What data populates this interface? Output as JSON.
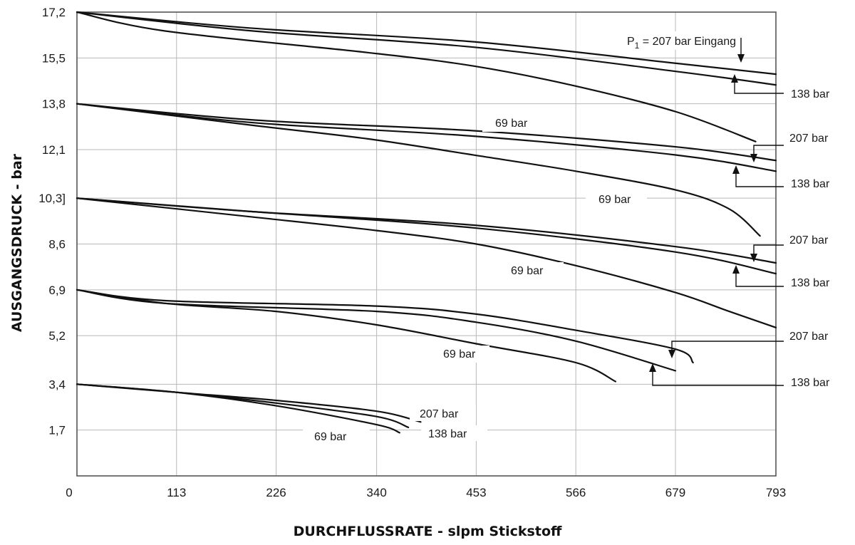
{
  "chart_data": {
    "type": "line",
    "xlabel": "DURCHFLUSSRATE - slpm Stickstoff",
    "ylabel": "AUSGANGSDRUCK - bar",
    "xlim": [
      0,
      793
    ],
    "ylim": [
      0,
      17.2
    ],
    "x_ticks": [
      "0",
      "113",
      "226",
      "340",
      "453",
      "566",
      "679",
      "793"
    ],
    "y_ticks": [
      "1,7",
      "3,4",
      "5,2",
      "6,9",
      "8,6",
      "10,3]",
      "12,1",
      "13,8",
      "15,5",
      "17,2"
    ],
    "grid": true,
    "colors": {
      "line": "#111111",
      "grid": "#b8b8b8",
      "frame": "#555555"
    },
    "series": [
      {
        "name": "207 bar",
        "points": [
          [
            0,
            17.2
          ],
          [
            200,
            16.6
          ],
          [
            450,
            16.1
          ],
          [
            680,
            15.3
          ],
          [
            793,
            14.9
          ]
        ]
      },
      {
        "name": "138 bar",
        "points": [
          [
            0,
            17.2
          ],
          [
            200,
            16.5
          ],
          [
            450,
            15.9
          ],
          [
            680,
            15.0
          ],
          [
            793,
            14.5
          ]
        ]
      },
      {
        "name": "69 bar",
        "points": [
          [
            0,
            17.2
          ],
          [
            100,
            16.5
          ],
          [
            330,
            15.7
          ],
          [
            450,
            15.2
          ],
          [
            560,
            14.5
          ],
          [
            680,
            13.5
          ],
          [
            770,
            12.4
          ]
        ]
      },
      {
        "name": "207 bar",
        "points": [
          [
            0,
            13.8
          ],
          [
            200,
            13.2
          ],
          [
            450,
            12.8
          ],
          [
            680,
            12.2
          ],
          [
            793,
            11.7
          ]
        ]
      },
      {
        "name": "138 bar",
        "points": [
          [
            0,
            13.8
          ],
          [
            200,
            13.1
          ],
          [
            450,
            12.6
          ],
          [
            680,
            11.9
          ],
          [
            793,
            11.3
          ]
        ]
      },
      {
        "name": "69 bar",
        "points": [
          [
            0,
            13.8
          ],
          [
            200,
            13.0
          ],
          [
            330,
            12.5
          ],
          [
            450,
            11.9
          ],
          [
            566,
            11.3
          ],
          [
            680,
            10.6
          ],
          [
            740,
            9.9
          ],
          [
            775,
            8.9
          ]
        ]
      },
      {
        "name": "207 bar",
        "points": [
          [
            0,
            10.3
          ],
          [
            200,
            9.8
          ],
          [
            450,
            9.3
          ],
          [
            680,
            8.5
          ],
          [
            793,
            7.9
          ]
        ]
      },
      {
        "name": "138 bar",
        "points": [
          [
            0,
            10.3
          ],
          [
            200,
            9.8
          ],
          [
            450,
            9.2
          ],
          [
            680,
            8.3
          ],
          [
            793,
            7.5
          ]
        ]
      },
      {
        "name": "69 bar",
        "points": [
          [
            0,
            10.3
          ],
          [
            200,
            9.6
          ],
          [
            340,
            9.1
          ],
          [
            453,
            8.6
          ],
          [
            566,
            7.8
          ],
          [
            679,
            6.8
          ],
          [
            740,
            6.1
          ],
          [
            793,
            5.5
          ]
        ]
      },
      {
        "name": "207 bar",
        "points": [
          [
            0,
            6.9
          ],
          [
            100,
            6.5
          ],
          [
            340,
            6.3
          ],
          [
            453,
            6.0
          ],
          [
            566,
            5.4
          ],
          [
            679,
            4.7
          ],
          [
            699,
            4.2
          ]
        ]
      },
      {
        "name": "138 bar",
        "points": [
          [
            0,
            6.9
          ],
          [
            100,
            6.4
          ],
          [
            340,
            6.1
          ],
          [
            453,
            5.7
          ],
          [
            566,
            5.0
          ],
          [
            679,
            3.9
          ]
        ]
      },
      {
        "name": "69 bar",
        "points": [
          [
            0,
            6.9
          ],
          [
            100,
            6.4
          ],
          [
            226,
            6.1
          ],
          [
            340,
            5.6
          ],
          [
            453,
            4.9
          ],
          [
            566,
            4.2
          ],
          [
            611,
            3.5
          ]
        ]
      },
      {
        "name": "207 bar",
        "points": [
          [
            0,
            3.4
          ],
          [
            113,
            3.1
          ],
          [
            226,
            2.8
          ],
          [
            340,
            2.4
          ],
          [
            390,
            2.0
          ]
        ]
      },
      {
        "name": "138 bar",
        "points": [
          [
            0,
            3.4
          ],
          [
            113,
            3.1
          ],
          [
            226,
            2.7
          ],
          [
            340,
            2.2
          ],
          [
            376,
            1.8
          ]
        ]
      },
      {
        "name": "69 bar",
        "points": [
          [
            0,
            3.4
          ],
          [
            113,
            3.1
          ],
          [
            226,
            2.6
          ],
          [
            340,
            1.9
          ],
          [
            366,
            1.6
          ]
        ]
      }
    ],
    "annotations": {
      "p1": "P",
      "p1_sub": "1",
      "p1_rest": " = 207 bar Eingang",
      "band1_138": "138 bar",
      "band1_69": "69 bar",
      "band2_207": "207 bar",
      "band2_138": "138 bar",
      "band2_69": "69 bar",
      "band3_207": "207 bar",
      "band3_138": "138 bar",
      "band3_69": "69 bar",
      "band4_207": "207 bar",
      "band4_138": "138 bar",
      "band4_69": "69 bar",
      "band5_207": "207 bar",
      "band5_138": "138 bar",
      "band5_69": "69 bar"
    }
  }
}
